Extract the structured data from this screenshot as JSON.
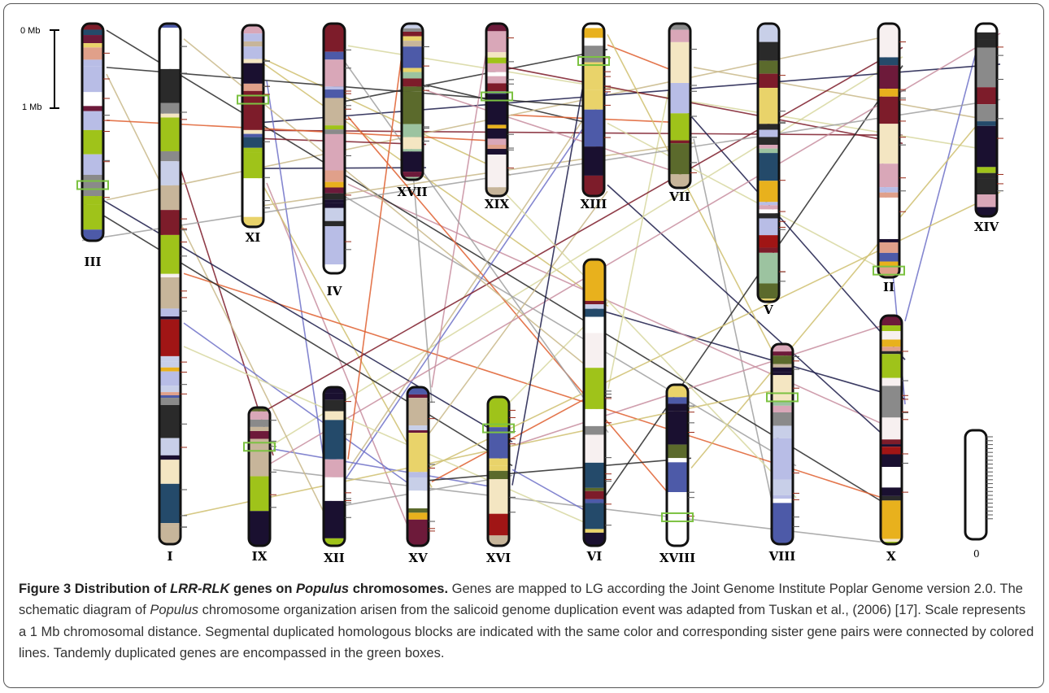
{
  "figure": {
    "scale": {
      "top": "0 Mb",
      "bottom": "1 Mb",
      "zero": "0"
    },
    "chromosomes": [
      "III",
      "I",
      "XI",
      "IV",
      "XVII",
      "XIX",
      "XIII",
      "VII",
      "V",
      "II",
      "XIV",
      "IX",
      "XII",
      "XV",
      "XVI",
      "VI",
      "XVIII",
      "VIII",
      "X"
    ]
  },
  "caption": {
    "title": [
      "Figure 3 Distribution of ",
      "LRR-RLK",
      " genes on ",
      "Populus",
      " chromosomes."
    ],
    "body": [
      " Genes are mapped to LG according the Joint Genome Institute Poplar Genome version 2.0. The schematic diagram of ",
      "Populus",
      " chromosome organization arisen from the salicoid genome duplication event was adapted from Tuskan et al., (2006) [17]. Scale represents a 1 Mb chromosomal distance. Segmental duplicated homologous blocks are indicated with the same color and corresponding sister gene pairs were connected by colored lines. Tandemly duplicated genes are encompassed in the green boxes."
    ]
  }
}
